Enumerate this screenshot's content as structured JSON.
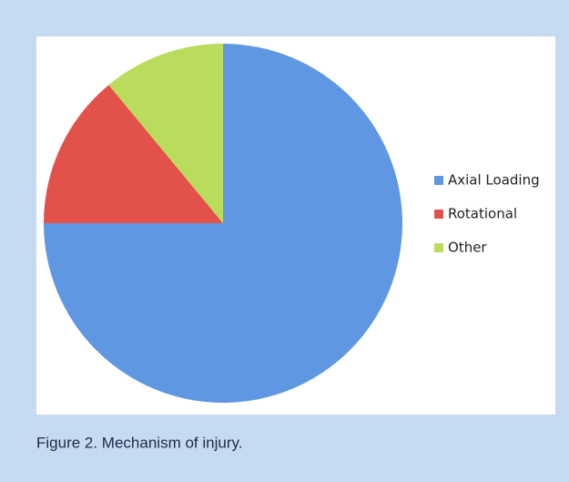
{
  "chart_data": {
    "type": "pie",
    "caption": "Figure 2. Mechanism of injury.",
    "categories": [
      "Axial Loading",
      "Rotational",
      "Other"
    ],
    "values": [
      75,
      14,
      11
    ],
    "colors": [
      "#5f97e2",
      "#e2524b",
      "#b9dc5c"
    ],
    "legend": "right"
  }
}
